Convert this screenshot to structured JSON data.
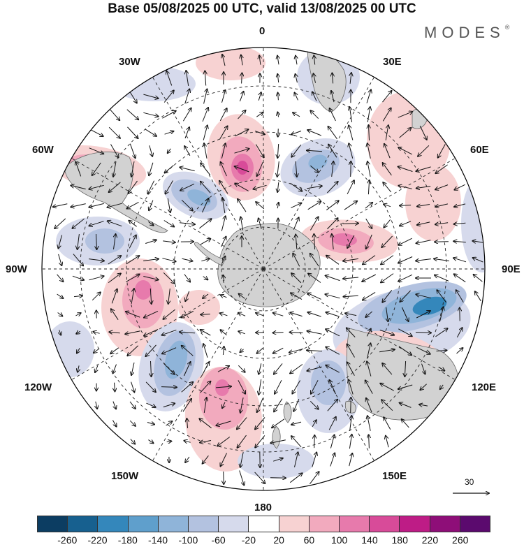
{
  "title": "Base 05/08/2025 00 UTC, valid 13/08/2025 00 UTC",
  "brand": "MODES",
  "brand_mark": "®",
  "longitude_labels": {
    "lon_0": "0",
    "lon_30e": "30E",
    "lon_60e": "60E",
    "lon_90e": "90E",
    "lon_120e": "120E",
    "lon_150e": "150E",
    "lon_180": "180",
    "lon_150w": "150W",
    "lon_120w": "120W",
    "lon_90w": "90W",
    "lon_60w": "60W",
    "lon_30w": "30W"
  },
  "reference_vector": "30",
  "colorbar": {
    "colors": [
      "#0c3d62",
      "#17608f",
      "#3487bb",
      "#5f9fcc",
      "#8fb4d9",
      "#b3c2e0",
      "#d6daec",
      "#ffffff",
      "#f7d2d2",
      "#f2aabe",
      "#e77aac",
      "#d84b99",
      "#be1c86",
      "#8e0e78",
      "#5b0a6e"
    ],
    "labels": [
      "-260",
      "-220",
      "-180",
      "-140",
      "-100",
      "-60",
      "-20",
      "20",
      "60",
      "100",
      "140",
      "180",
      "220",
      "260"
    ]
  },
  "anomaly_colors": {
    "strong_pos": "#d84b99",
    "pos": "#e77aac",
    "mid_pos": "#f2aabe",
    "weak_pos": "#f7d2d2",
    "weak_neg": "#d6daec",
    "neg": "#b3c2e0",
    "mid_neg": "#8fb4d9",
    "strong_neg": "#3487bb",
    "land": "#d2d2d2"
  }
}
